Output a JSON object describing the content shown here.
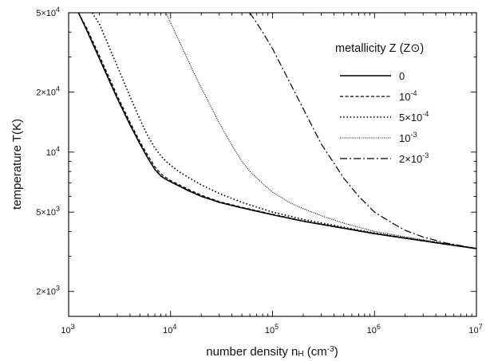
{
  "chart_data": {
    "type": "line",
    "title": "",
    "xlabel": "number density  n_H (cm^-3)",
    "ylabel": "temperature  T(K)",
    "xscale": "log",
    "yscale": "log",
    "xlim": [
      1000,
      10000000
    ],
    "ylim": [
      1500,
      50000
    ],
    "grid": false,
    "legend_placement": "top-right",
    "legend_title": "metallicity Z (Z⊙)",
    "x_ticks": [
      {
        "value": 1000,
        "base": "10",
        "exp": "3"
      },
      {
        "value": 10000,
        "base": "10",
        "exp": "4"
      },
      {
        "value": 100000,
        "base": "10",
        "exp": "5"
      },
      {
        "value": 1000000,
        "base": "10",
        "exp": "6"
      },
      {
        "value": 10000000,
        "base": "10",
        "exp": "7"
      }
    ],
    "y_ticks": [
      {
        "value": 2000,
        "mant": "2×10",
        "exp": "3"
      },
      {
        "value": 5000,
        "mant": "5×10",
        "exp": "3"
      },
      {
        "value": 10000,
        "mant": "10",
        "exp": "4"
      },
      {
        "value": 20000,
        "mant": "2×10",
        "exp": "4"
      },
      {
        "value": 50000,
        "mant": "5×10",
        "exp": "4"
      }
    ],
    "series": [
      {
        "name": "0",
        "legend_base": "0",
        "legend_exp": "",
        "legend_prefix": "",
        "dash": "",
        "width": 1.6,
        "x": [
          1250,
          1500,
          2000,
          3000,
          4000,
          5000,
          6000,
          7000,
          8000,
          9000,
          10000,
          15000,
          20000,
          30000,
          50000,
          100000,
          200000,
          500000,
          1000000,
          2000000,
          5000000,
          10000000
        ],
        "y": [
          50000,
          41000,
          29500,
          18600,
          13700,
          11000,
          9300,
          8200,
          7600,
          7300,
          7100,
          6400,
          6000,
          5600,
          5250,
          4850,
          4500,
          4150,
          3900,
          3700,
          3450,
          3280
        ]
      },
      {
        "name": "10^-4",
        "legend_base": "10",
        "legend_exp": "-4",
        "legend_prefix": "",
        "dash": "4,2.5",
        "width": 1.2,
        "x": [
          1250,
          1500,
          2000,
          3000,
          4000,
          5000,
          6000,
          7000,
          8000,
          9000,
          10000,
          15000,
          20000,
          30000,
          50000,
          100000,
          200000,
          500000,
          1000000,
          2000000,
          5000000,
          10000000
        ],
        "y": [
          50000,
          42000,
          30500,
          19200,
          14100,
          11300,
          9600,
          8450,
          7800,
          7450,
          7200,
          6500,
          6080,
          5650,
          5290,
          4880,
          4520,
          4160,
          3910,
          3710,
          3460,
          3280
        ]
      },
      {
        "name": "5×10^-4",
        "legend_base": "10",
        "legend_exp": "-4",
        "legend_prefix": "5×",
        "dash": "1.6,2.6",
        "width": 1.6,
        "x": [
          1700,
          2000,
          3000,
          4000,
          5000,
          6000,
          7000,
          8000,
          9000,
          10000,
          12000,
          15000,
          20000,
          30000,
          50000,
          100000,
          200000,
          500000,
          1000000,
          2000000,
          5000000,
          10000000
        ],
        "y": [
          50000,
          44000,
          27000,
          19000,
          14600,
          12000,
          10500,
          9600,
          9000,
          8600,
          8000,
          7450,
          6850,
          6200,
          5600,
          5000,
          4600,
          4200,
          3930,
          3720,
          3460,
          3280
        ]
      },
      {
        "name": "10^-3",
        "legend_base": "10",
        "legend_exp": "-3",
        "legend_prefix": "",
        "dash": "1,1.4",
        "width": 1.1,
        "x": [
          9000,
          10000,
          15000,
          20000,
          30000,
          40000,
          50000,
          60000,
          80000,
          100000,
          150000,
          200000,
          300000,
          500000,
          1000000,
          2000000,
          5000000,
          10000000
        ],
        "y": [
          50000,
          44500,
          28500,
          21000,
          14000,
          10800,
          9000,
          8000,
          6950,
          6300,
          5550,
          5200,
          4800,
          4400,
          4000,
          3760,
          3480,
          3290
        ]
      },
      {
        "name": "2×10^-3",
        "legend_base": "10",
        "legend_exp": "-3",
        "legend_prefix": "2×",
        "dash": "9,3,2,3",
        "width": 1.2,
        "x": [
          60000,
          80000,
          100000,
          150000,
          200000,
          300000,
          500000,
          700000,
          1000000,
          1500000,
          2000000,
          3000000,
          5000000,
          10000000
        ],
        "y": [
          50000,
          40000,
          33000,
          22000,
          16500,
          11000,
          7400,
          6000,
          5000,
          4400,
          4050,
          3750,
          3500,
          3290
        ]
      }
    ]
  }
}
